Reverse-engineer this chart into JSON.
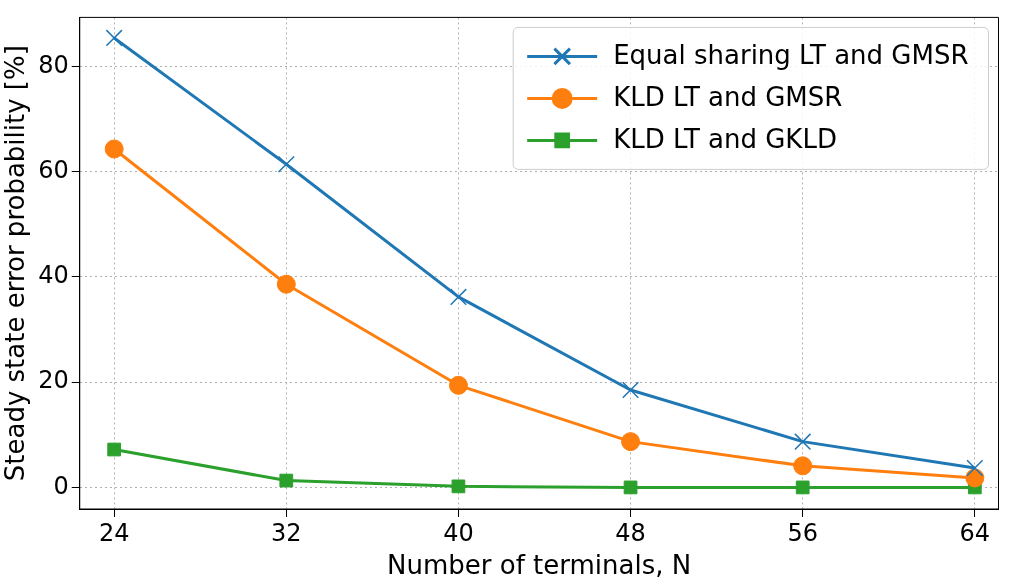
{
  "chart_data": {
    "type": "line",
    "xlabel": "Number of terminals, N",
    "ylabel": "Steady state error probability [%]",
    "x": [
      24,
      32,
      40,
      48,
      56,
      64
    ],
    "series": [
      {
        "name": "Equal sharing LT and GMSR",
        "color": "#1f77b4",
        "marker": "cross",
        "values": [
          85.4,
          61.4,
          36.2,
          18.5,
          8.7,
          3.7
        ]
      },
      {
        "name": "KLD LT and GMSR",
        "color": "#ff7f0e",
        "marker": "circle",
        "values": [
          64.3,
          38.6,
          19.4,
          8.7,
          4.1,
          1.8
        ]
      },
      {
        "name": "KLD LT and GKLD",
        "color": "#2ca02c",
        "marker": "square",
        "values": [
          7.2,
          1.3,
          0.2,
          0,
          0,
          0
        ]
      }
    ],
    "xlim": [
      22.4,
      65.1
    ],
    "xticks": [
      24,
      32,
      40,
      48,
      56,
      64
    ],
    "ylim": [
      -4.1,
      89.3
    ],
    "yticks": [
      0,
      20,
      40,
      60,
      80
    ],
    "grid": true,
    "legend": "top right",
    "line_style": "solid"
  }
}
